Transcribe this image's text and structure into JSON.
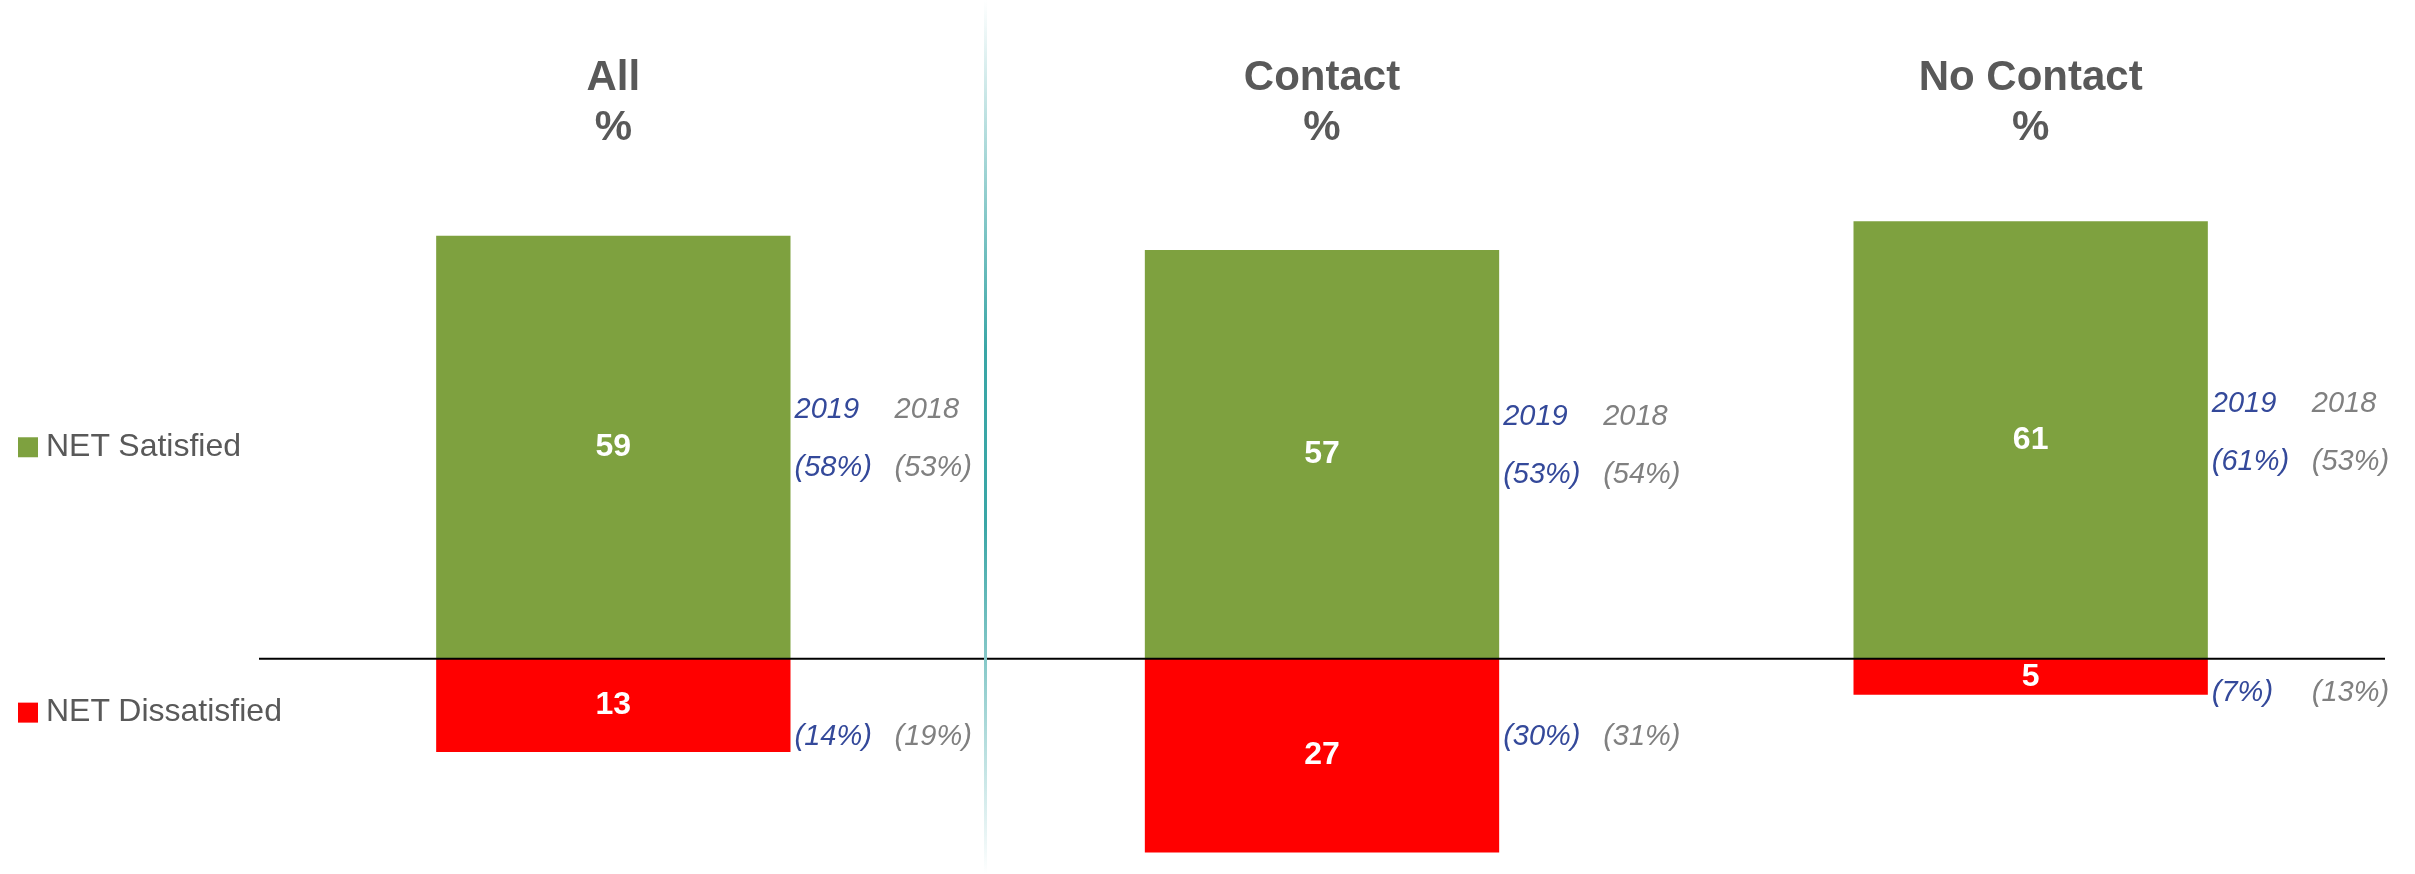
{
  "chart_data": {
    "type": "bar",
    "stacked": true,
    "categories": [
      "All\n%",
      "Contact\n%",
      "No Contact\n%"
    ],
    "series": [
      {
        "name": "NET Satisfied",
        "color": "#7ea13f",
        "values": [
          59,
          57,
          61
        ],
        "value_labels": [
          "59",
          "57",
          "61"
        ]
      },
      {
        "name": "NET Dissatisfied",
        "color": "#ff0000",
        "values": [
          -13,
          -27,
          -5
        ]
      }
    ],
    "tick_labels": "x",
    "legend": "left",
    "grid": false,
    "ref_lines": [
      {
        "axis": "y",
        "value": 0,
        "color": "#000000"
      }
    ],
    "annotations": [
      "13",
      "2019",
      "2018",
      "(58%)",
      "(53%)",
      "(14%)",
      "(19%)",
      "27",
      "2019",
      "2018",
      "(53%)",
      "(54%)",
      "(30%)",
      "(31%)",
      "5",
      "2019",
      "2018",
      "(61%)",
      "(53%)",
      "(7%)",
      "(13%)"
    ]
  }
}
